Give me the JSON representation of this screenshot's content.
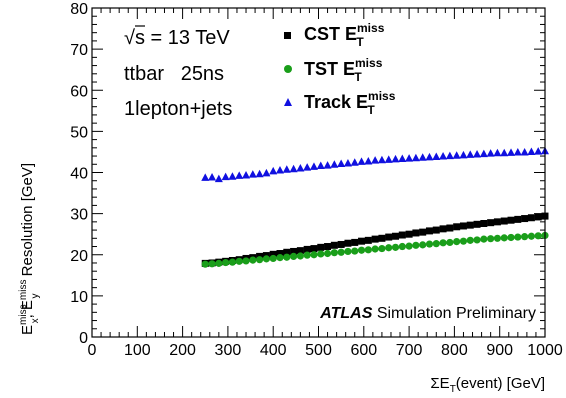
{
  "chart_data": {
    "type": "scatter",
    "xlabel": "ΣE_T(event) [GeV]",
    "ylabel": "E_x^miss, E_y^miss Resolution [GeV]",
    "xlim": [
      0,
      1000
    ],
    "ylim": [
      0,
      80
    ],
    "x_ticks": [
      0,
      100,
      200,
      300,
      400,
      500,
      600,
      700,
      800,
      900,
      1000
    ],
    "y_ticks": [
      0,
      10,
      20,
      30,
      40,
      50,
      60,
      70,
      80
    ],
    "grid": false,
    "legend_position": "top-center",
    "annotations": {
      "energy": "√s = 13 TeV",
      "sample": "ttbar   25ns",
      "selection": "1lepton+jets",
      "atlas_bold": "ATLAS",
      "atlas_rest": "Simulation Preliminary"
    },
    "series": [
      {
        "name": "CST E_T^miss",
        "color": "#000000",
        "marker": "square",
        "x": [
          250,
          265,
          280,
          295,
          310,
          325,
          340,
          355,
          370,
          385,
          400,
          415,
          430,
          445,
          460,
          475,
          490,
          505,
          520,
          535,
          550,
          565,
          580,
          595,
          610,
          625,
          640,
          655,
          670,
          685,
          700,
          715,
          730,
          745,
          760,
          775,
          790,
          805,
          820,
          835,
          850,
          865,
          880,
          895,
          910,
          925,
          940,
          955,
          970,
          985,
          1000
        ],
        "values": [
          17.9,
          18.0,
          18.2,
          18.4,
          18.6,
          18.8,
          19.1,
          19.3,
          19.6,
          19.8,
          20.1,
          20.3,
          20.6,
          20.8,
          21.0,
          21.3,
          21.5,
          21.8,
          22.0,
          22.3,
          22.5,
          22.8,
          23.0,
          23.3,
          23.5,
          23.8,
          24.0,
          24.3,
          24.5,
          24.8,
          25.0,
          25.3,
          25.5,
          25.8,
          26.0,
          26.3,
          26.5,
          26.8,
          27.0,
          27.2,
          27.4,
          27.6,
          27.8,
          28.0,
          28.2,
          28.4,
          28.6,
          28.8,
          29.0,
          29.2,
          29.4
        ]
      },
      {
        "name": "TST E_T^miss",
        "color": "#1a9e1a",
        "marker": "circle",
        "x": [
          250,
          265,
          280,
          295,
          310,
          325,
          340,
          355,
          370,
          385,
          400,
          415,
          430,
          445,
          460,
          475,
          490,
          505,
          520,
          535,
          550,
          565,
          580,
          595,
          610,
          625,
          640,
          655,
          670,
          685,
          700,
          715,
          730,
          745,
          760,
          775,
          790,
          805,
          820,
          835,
          850,
          865,
          880,
          895,
          910,
          925,
          940,
          955,
          970,
          985,
          1000
        ],
        "values": [
          17.7,
          17.8,
          17.9,
          18.1,
          18.2,
          18.4,
          18.5,
          18.7,
          18.8,
          19.0,
          19.1,
          19.3,
          19.4,
          19.6,
          19.7,
          19.9,
          20.0,
          20.2,
          20.3,
          20.5,
          20.6,
          20.8,
          20.9,
          21.1,
          21.2,
          21.4,
          21.5,
          21.7,
          21.8,
          22.0,
          22.1,
          22.3,
          22.4,
          22.6,
          22.7,
          22.9,
          23.0,
          23.2,
          23.3,
          23.5,
          23.6,
          23.8,
          23.9,
          24.0,
          24.1,
          24.2,
          24.3,
          24.4,
          24.5,
          24.6,
          24.7
        ]
      },
      {
        "name": "Track E_T^miss",
        "color": "#1010e0",
        "marker": "triangle",
        "x": [
          250,
          265,
          280,
          295,
          310,
          325,
          340,
          355,
          370,
          385,
          400,
          415,
          430,
          445,
          460,
          475,
          490,
          505,
          520,
          535,
          550,
          565,
          580,
          595,
          610,
          625,
          640,
          655,
          670,
          685,
          700,
          715,
          730,
          745,
          760,
          775,
          790,
          805,
          820,
          835,
          850,
          865,
          880,
          895,
          910,
          925,
          940,
          955,
          970,
          985,
          1000
        ],
        "values": [
          38.8,
          38.9,
          38.5,
          39.0,
          39.1,
          39.3,
          39.4,
          39.6,
          39.7,
          39.9,
          40.4,
          40.6,
          40.8,
          40.9,
          41.1,
          41.3,
          41.5,
          41.7,
          41.8,
          42.0,
          42.2,
          42.3,
          42.5,
          42.7,
          42.8,
          43.0,
          43.1,
          43.2,
          43.3,
          43.4,
          43.5,
          43.6,
          43.7,
          43.8,
          43.9,
          44.0,
          44.1,
          44.2,
          44.3,
          44.4,
          44.5,
          44.6,
          44.7,
          44.8,
          44.8,
          44.9,
          45.0,
          45.0,
          45.1,
          45.2,
          45.3
        ]
      }
    ]
  }
}
